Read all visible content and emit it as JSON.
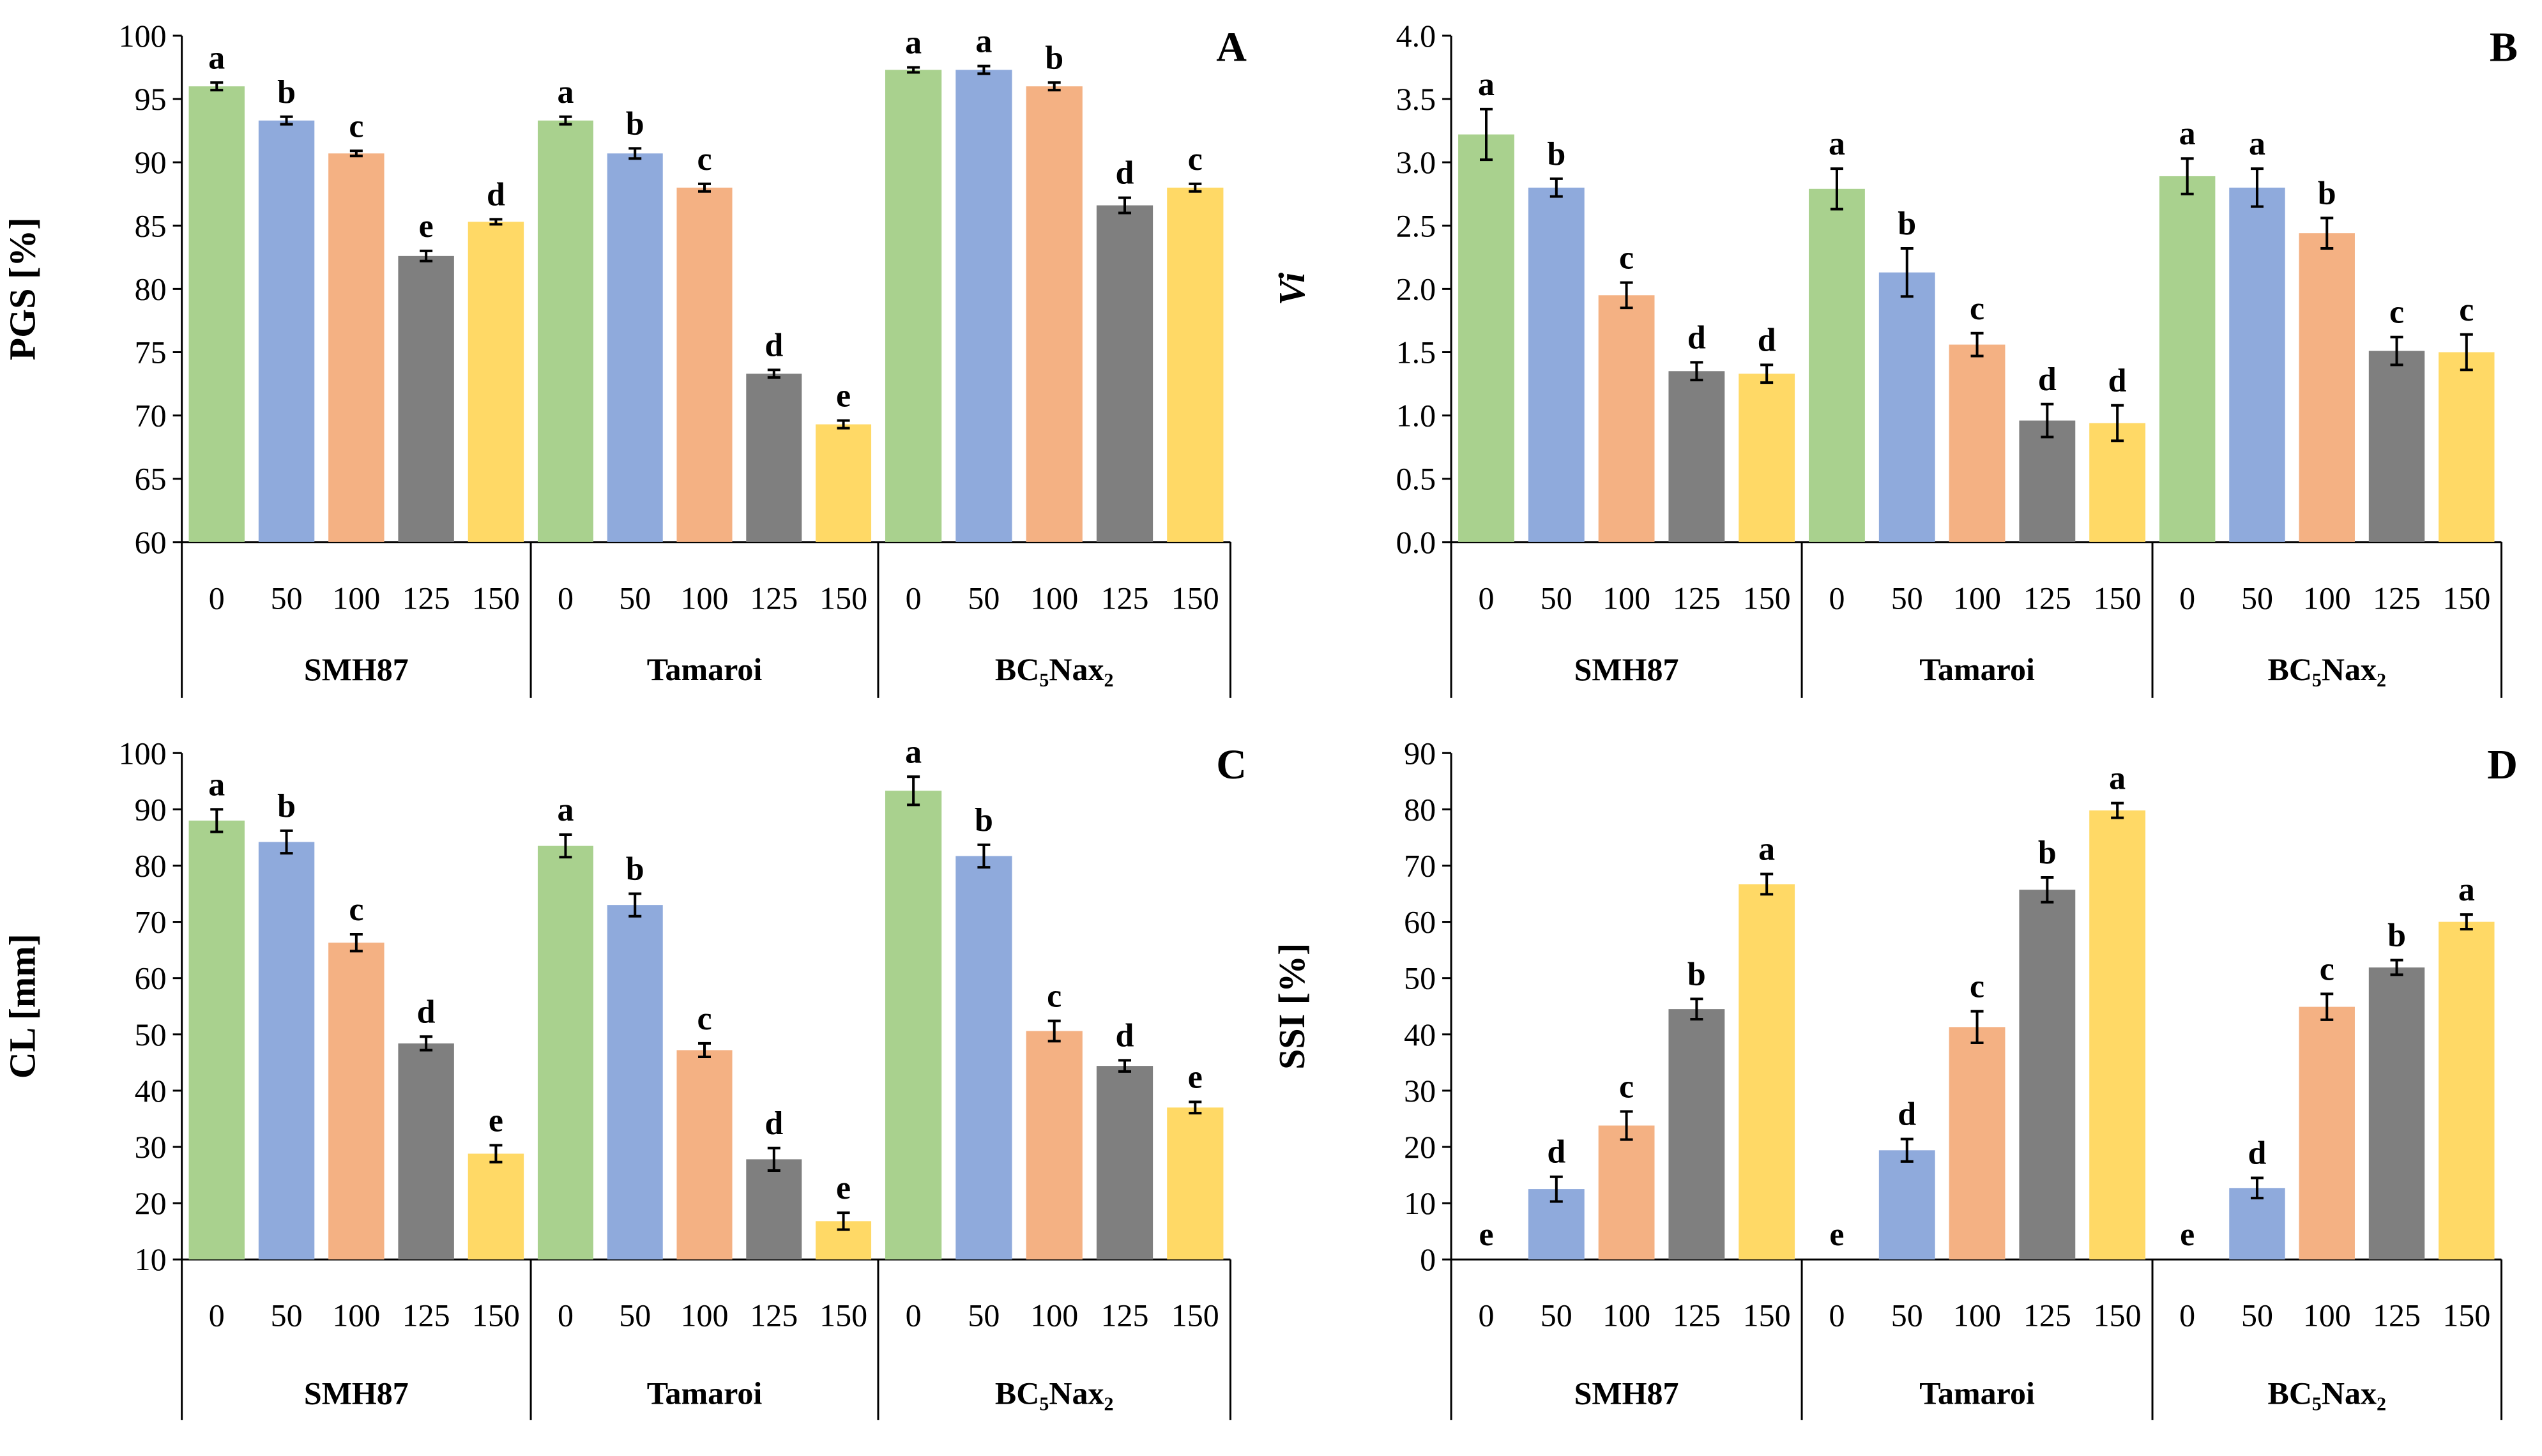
{
  "colors": [
    "#a9d18e",
    "#8faadc",
    "#f4b183",
    "#7f7f7f",
    "#ffd966"
  ],
  "groups": [
    "SMH87",
    "Tamaroi",
    "BC₅Nax₂"
  ],
  "treatments": [
    "0",
    "50",
    "100",
    "125",
    "150"
  ],
  "chart_data": [
    {
      "panel": "A",
      "type": "bar",
      "ylabel": "PGS [%]",
      "ylim": [
        60,
        100
      ],
      "ytick_step": 5,
      "yticks": [
        "60",
        "65",
        "70",
        "75",
        "80",
        "85",
        "90",
        "95",
        "100"
      ],
      "groups": [
        {
          "name": "SMH87",
          "values": [
            96,
            93.3,
            90.7,
            82.6,
            85.3
          ],
          "errors": [
            0.3,
            0.3,
            0.2,
            0.4,
            0.2
          ],
          "letters": [
            "a",
            "b",
            "c",
            "e",
            "d"
          ]
        },
        {
          "name": "Tamaroi",
          "values": [
            93.3,
            90.7,
            88,
            73.3,
            69.3
          ],
          "errors": [
            0.3,
            0.4,
            0.3,
            0.3,
            0.3
          ],
          "letters": [
            "a",
            "b",
            "c",
            "d",
            "e"
          ]
        },
        {
          "name": "BC₅Nax₂",
          "values": [
            97.3,
            97.3,
            96,
            86.6,
            88
          ],
          "errors": [
            0.2,
            0.3,
            0.3,
            0.6,
            0.3
          ],
          "letters": [
            "a",
            "a",
            "b",
            "d",
            "c"
          ]
        }
      ]
    },
    {
      "panel": "B",
      "type": "bar",
      "ylabel": "Vi",
      "ylim": [
        0,
        4
      ],
      "ytick_step": 0.5,
      "yticks": [
        "0.0",
        "0.5",
        "1.0",
        "1.5",
        "2.0",
        "2.5",
        "3.0",
        "3.5",
        "4.0"
      ],
      "groups": [
        {
          "name": "SMH87",
          "values": [
            3.22,
            2.8,
            1.95,
            1.35,
            1.33
          ],
          "errors": [
            0.2,
            0.07,
            0.1,
            0.07,
            0.07
          ],
          "letters": [
            "a",
            "b",
            "c",
            "d",
            "d"
          ]
        },
        {
          "name": "Tamaroi",
          "values": [
            2.79,
            2.13,
            1.56,
            0.96,
            0.94
          ],
          "errors": [
            0.16,
            0.19,
            0.09,
            0.13,
            0.14
          ],
          "letters": [
            "a",
            "b",
            "c",
            "d",
            "d"
          ]
        },
        {
          "name": "BC₅Nax₂",
          "values": [
            2.89,
            2.8,
            2.44,
            1.51,
            1.5
          ],
          "errors": [
            0.14,
            0.15,
            0.12,
            0.11,
            0.14
          ],
          "letters": [
            "a",
            "a",
            "b",
            "c",
            "c"
          ]
        }
      ]
    },
    {
      "panel": "C",
      "type": "bar",
      "ylabel": "CL [mm]",
      "ylim": [
        10,
        100
      ],
      "ytick_step": 10,
      "yticks": [
        "10",
        "20",
        "30",
        "40",
        "50",
        "60",
        "70",
        "80",
        "90",
        "100"
      ],
      "groups": [
        {
          "name": "SMH87",
          "values": [
            88,
            84.2,
            66.3,
            48.4,
            28.8
          ],
          "errors": [
            2,
            2,
            1.5,
            1.2,
            1.5
          ],
          "letters": [
            "a",
            "b",
            "c",
            "d",
            "e"
          ]
        },
        {
          "name": "Tamaroi",
          "values": [
            83.5,
            73,
            47.2,
            27.8,
            16.8
          ],
          "errors": [
            2,
            2,
            1.2,
            2,
            1.5
          ],
          "letters": [
            "a",
            "b",
            "c",
            "d",
            "e"
          ]
        },
        {
          "name": "BC₅Nax₂",
          "values": [
            93.3,
            81.7,
            50.6,
            44.4,
            37
          ],
          "errors": [
            2.5,
            2,
            1.8,
            1,
            1
          ],
          "letters": [
            "a",
            "b",
            "c",
            "d",
            "e"
          ]
        }
      ]
    },
    {
      "panel": "D",
      "type": "bar",
      "ylabel": "SSI [%]",
      "ylim": [
        0,
        90
      ],
      "ytick_step": 10,
      "yticks": [
        "0",
        "10",
        "20",
        "30",
        "40",
        "50",
        "60",
        "70",
        "80",
        "90"
      ],
      "groups": [
        {
          "name": "SMH87",
          "values": [
            0,
            12.5,
            23.8,
            44.5,
            66.7
          ],
          "errors": [
            0,
            2.2,
            2.5,
            1.8,
            1.8
          ],
          "letters": [
            "e",
            "d",
            "c",
            "b",
            "a"
          ]
        },
        {
          "name": "Tamaroi",
          "values": [
            0,
            19.4,
            41.3,
            65.7,
            79.8
          ],
          "errors": [
            0,
            2,
            2.8,
            2.2,
            1.3
          ],
          "letters": [
            "e",
            "d",
            "c",
            "b",
            "a"
          ]
        },
        {
          "name": "BC₅Nax₂",
          "values": [
            0,
            12.7,
            44.9,
            51.9,
            60
          ],
          "errors": [
            0,
            1.8,
            2.3,
            1.3,
            1.3
          ],
          "letters": [
            "e",
            "d",
            "c",
            "b",
            "a"
          ]
        }
      ]
    }
  ]
}
